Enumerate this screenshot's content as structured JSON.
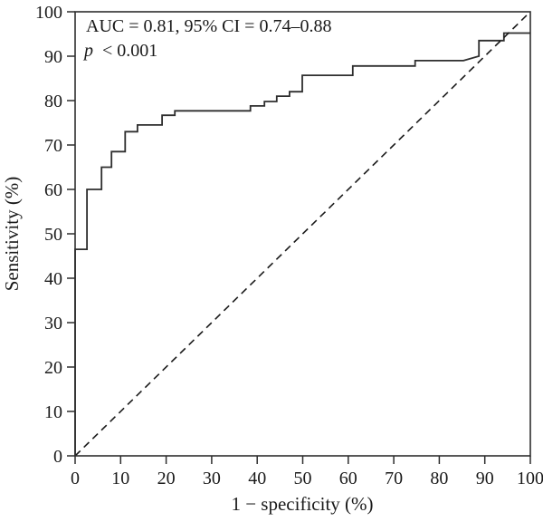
{
  "figure": {
    "background": "#ffffff",
    "line_color": "#2e2e2e",
    "text_color": "#1a1a1a"
  },
  "chart_data": {
    "type": "line",
    "subtype": "roc-curve",
    "title": "",
    "xlabel": "1 − specificity (%)",
    "ylabel": "Sensitivity (%)",
    "xlim": [
      0,
      100
    ],
    "ylim": [
      0,
      100
    ],
    "x_ticks": [
      0,
      10,
      20,
      30,
      40,
      50,
      60,
      70,
      80,
      90,
      100
    ],
    "y_ticks": [
      0,
      10,
      20,
      30,
      40,
      50,
      60,
      70,
      80,
      90,
      100
    ],
    "grid": false,
    "legend_position": "none",
    "annotation": {
      "line1": "AUC = 0.81, 95% CI = 0.74–0.88",
      "p_italic": "p",
      "p_rest": "< 0.001"
    },
    "auc": 0.81,
    "ci_95": "0.74–0.88",
    "p_value": "< 0.001",
    "series": [
      {
        "name": "ROC curve",
        "style": "solid",
        "color": "#2e2e2e",
        "points": [
          [
            0,
            0
          ],
          [
            0,
            46.5
          ],
          [
            2.6,
            46.5
          ],
          [
            2.6,
            60
          ],
          [
            5.8,
            60
          ],
          [
            5.8,
            65
          ],
          [
            8,
            65
          ],
          [
            8,
            68.5
          ],
          [
            11,
            68.5
          ],
          [
            11,
            73
          ],
          [
            13.7,
            73
          ],
          [
            13.7,
            74.5
          ],
          [
            19.1,
            74.5
          ],
          [
            19.1,
            76.7
          ],
          [
            21.9,
            76.7
          ],
          [
            21.9,
            77.7
          ],
          [
            38.5,
            77.7
          ],
          [
            38.5,
            78.8
          ],
          [
            41.6,
            78.8
          ],
          [
            41.6,
            79.8
          ],
          [
            44.3,
            79.8
          ],
          [
            44.3,
            81
          ],
          [
            47.1,
            81
          ],
          [
            47.1,
            82
          ],
          [
            49.9,
            82
          ],
          [
            49.9,
            85.7
          ],
          [
            61,
            85.7
          ],
          [
            61,
            87.8
          ],
          [
            74.7,
            87.8
          ],
          [
            74.7,
            89
          ],
          [
            85.3,
            89
          ],
          [
            88.7,
            90
          ],
          [
            88.7,
            93.5
          ],
          [
            94.2,
            93.5
          ],
          [
            94.2,
            95.2
          ],
          [
            100,
            95.2
          ]
        ]
      },
      {
        "name": "Reference line",
        "style": "dashed",
        "color": "#1a1a1a",
        "points": [
          [
            0,
            0
          ],
          [
            100,
            100
          ]
        ]
      }
    ]
  }
}
